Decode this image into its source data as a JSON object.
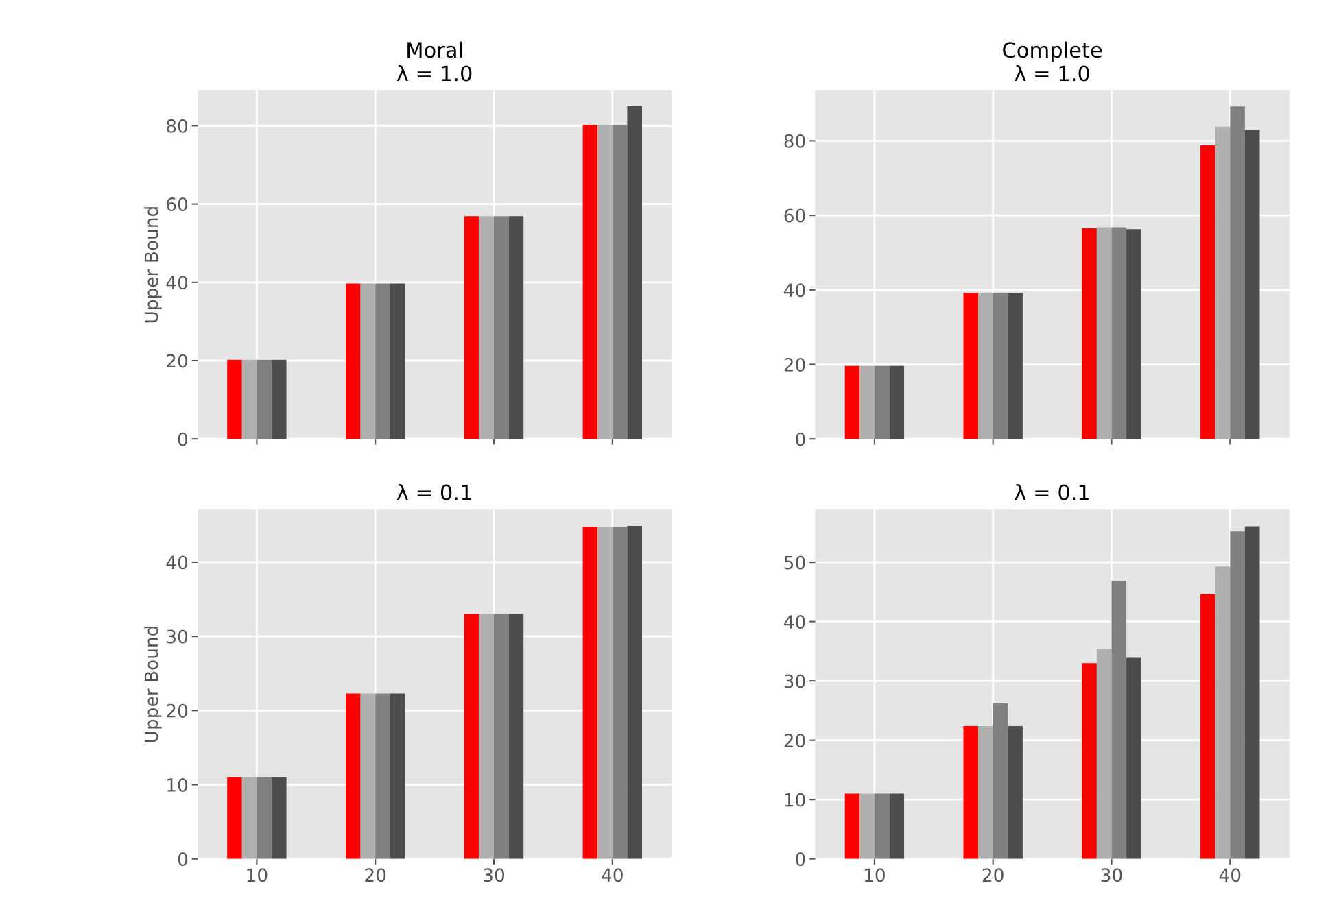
{
  "chart_data": [
    {
      "type": "bar",
      "title": "Moral\nλ = 1.0",
      "ylabel": "Upper Bound",
      "x": [
        10,
        20,
        30,
        40
      ],
      "xlim": [
        5,
        45
      ],
      "xticks": [
        10,
        20,
        30,
        40
      ],
      "ylim": [
        0,
        89
      ],
      "yticks": [
        0,
        20,
        40,
        60,
        80
      ],
      "grid": true,
      "tick_labels": "y",
      "series": [
        {
          "color": "#ff0000",
          "values": [
            20.2,
            39.7,
            56.9,
            80.2
          ]
        },
        {
          "color": "#b0b0b0",
          "values": [
            20.2,
            39.7,
            56.9,
            80.2
          ]
        },
        {
          "color": "#808080",
          "values": [
            20.2,
            39.7,
            56.9,
            80.2
          ]
        },
        {
          "color": "#4d4d4d",
          "values": [
            20.2,
            39.7,
            56.9,
            85.0
          ]
        }
      ]
    },
    {
      "type": "bar",
      "title": "Complete\nλ = 1.0",
      "x": [
        10,
        20,
        30,
        40
      ],
      "xlim": [
        5,
        45
      ],
      "xticks": [
        10,
        20,
        30,
        40
      ],
      "ylim": [
        0,
        93.5
      ],
      "yticks": [
        0,
        20,
        40,
        60,
        80
      ],
      "grid": true,
      "tick_labels": "y",
      "series": [
        {
          "color": "#ff0000",
          "values": [
            19.6,
            39.2,
            56.5,
            78.8
          ]
        },
        {
          "color": "#b0b0b0",
          "values": [
            19.6,
            39.2,
            56.8,
            83.8
          ]
        },
        {
          "color": "#808080",
          "values": [
            19.6,
            39.2,
            56.8,
            89.2
          ]
        },
        {
          "color": "#4d4d4d",
          "values": [
            19.6,
            39.2,
            56.3,
            82.9
          ]
        }
      ]
    },
    {
      "type": "bar",
      "title": "λ = 0.1",
      "ylabel": "Upper Bound",
      "x": [
        10,
        20,
        30,
        40
      ],
      "xlim": [
        5,
        45
      ],
      "xticks": [
        10,
        20,
        30,
        40
      ],
      "ylim": [
        0,
        47.1
      ],
      "yticks": [
        0,
        10,
        20,
        30,
        40
      ],
      "grid": true,
      "series": [
        {
          "color": "#ff0000",
          "values": [
            11.0,
            22.3,
            33.0,
            44.8
          ]
        },
        {
          "color": "#b0b0b0",
          "values": [
            11.0,
            22.3,
            33.0,
            44.8
          ]
        },
        {
          "color": "#808080",
          "values": [
            11.0,
            22.3,
            33.0,
            44.8
          ]
        },
        {
          "color": "#4d4d4d",
          "values": [
            11.0,
            22.3,
            33.0,
            44.9
          ]
        }
      ]
    },
    {
      "type": "bar",
      "title": "λ = 0.1",
      "x": [
        10,
        20,
        30,
        40
      ],
      "xlim": [
        5,
        45
      ],
      "xticks": [
        10,
        20,
        30,
        40
      ],
      "ylim": [
        0,
        58.9
      ],
      "yticks": [
        0,
        10,
        20,
        30,
        40,
        50
      ],
      "grid": true,
      "series": [
        {
          "color": "#ff0000",
          "values": [
            11.0,
            22.4,
            33.0,
            44.6
          ]
        },
        {
          "color": "#b0b0b0",
          "values": [
            11.0,
            22.4,
            35.4,
            49.3
          ]
        },
        {
          "color": "#808080",
          "values": [
            11.0,
            26.2,
            46.9,
            55.2
          ]
        },
        {
          "color": "#4d4d4d",
          "values": [
            11.0,
            22.4,
            33.9,
            56.1
          ]
        }
      ]
    }
  ]
}
